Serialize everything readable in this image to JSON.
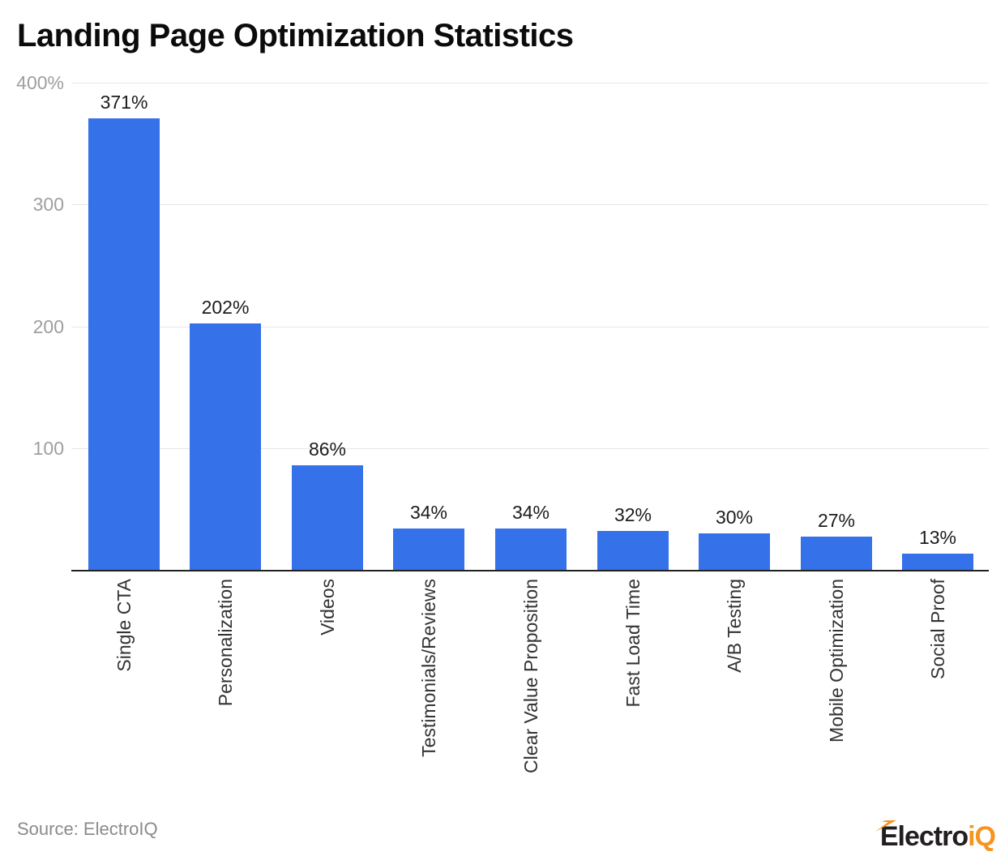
{
  "page": {
    "title": "Landing Page Optimization Statistics",
    "source_text": "Source: ElectroIQ"
  },
  "logo": {
    "dark": "Electro",
    "accent": "iQ",
    "bolt_icon": "lightning-bolt"
  },
  "colors": {
    "bar": "#3571e9",
    "grid": "#e8e8e8",
    "axis_line": "#212121",
    "tick_label": "#9e9e9e",
    "value_label": "#1c1c1c",
    "category_label": "#333333",
    "title": "#0b0b0b",
    "source": "#8a8a8a",
    "logo_dark": "#231f20",
    "logo_accent": "#f7941e",
    "background": "#ffffff"
  },
  "chart_data": {
    "type": "bar",
    "title": "Landing Page Optimization Statistics",
    "categories": [
      "Single CTA",
      "Personalization",
      "Videos",
      "Testimonials/Reviews",
      "Clear Value Proposition",
      "Fast Load Time",
      "A/B Testing",
      "Mobile Optimization",
      "Social Proof"
    ],
    "values": [
      371,
      202,
      86,
      34,
      34,
      32,
      30,
      27,
      13
    ],
    "value_labels": [
      "371%",
      "202%",
      "86%",
      "34%",
      "34%",
      "32%",
      "30%",
      "27%",
      "13%"
    ],
    "xlabel": "",
    "ylabel": "",
    "ylim": [
      0,
      400
    ],
    "yticks": [
      {
        "value": 400,
        "label": "400%"
      },
      {
        "value": 300,
        "label": "300"
      },
      {
        "value": 200,
        "label": "200"
      },
      {
        "value": 100,
        "label": "100"
      }
    ],
    "grid": true,
    "legend": "none",
    "bar_color": "#3571e9"
  }
}
